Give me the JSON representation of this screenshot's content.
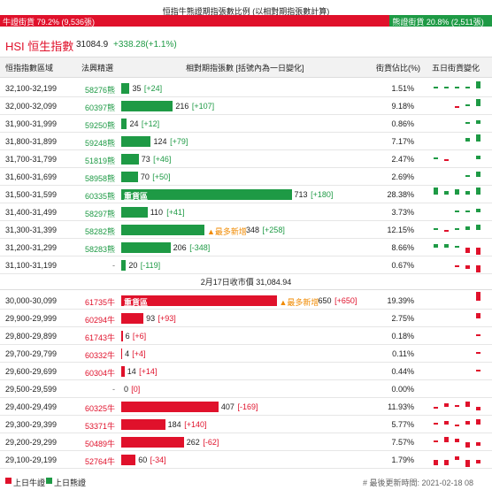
{
  "banner": {
    "title": "恒指牛熊證期指張數比例 (以相對期指張數計算)",
    "bull_label": "牛證街貨 79.2% (9,536張)",
    "bear_label": "熊證街貨 20.8% (2,511張)",
    "bull_share": 79.2
  },
  "index": {
    "name": "HSI 恒生指數",
    "price": "31084.9",
    "change": "+338.28(+1.1%)"
  },
  "columns": [
    "恒指指數區域",
    "法興精選",
    "相對期指張數 [括號內為一日變化]",
    "街貨佔比(%)",
    "五日街貨變化"
  ],
  "bear_rows": [
    {
      "range": "32,100-32,199",
      "pick": "58276熊",
      "count": 35,
      "change": "[+24]",
      "share": "1.51%",
      "five_day": [
        1,
        1,
        1,
        1,
        4
      ]
    },
    {
      "range": "32,000-32,099",
      "pick": "60397熊",
      "count": 216,
      "change": "[+107]",
      "share": "9.18%",
      "five_day": [
        0,
        0,
        -1,
        1,
        4
      ]
    },
    {
      "range": "31,900-31,999",
      "pick": "59250熊",
      "count": 24,
      "change": "[+12]",
      "share": "0.86%",
      "five_day": [
        0,
        0,
        0,
        1,
        2
      ]
    },
    {
      "range": "31,800-31,899",
      "pick": "59248熊",
      "count": 124,
      "change": "[+79]",
      "share": "7.17%",
      "five_day": [
        0,
        0,
        0,
        2,
        4
      ]
    },
    {
      "range": "31,700-31,799",
      "pick": "51819熊",
      "count": 73,
      "change": "[+46]",
      "share": "2.47%",
      "five_day": [
        1,
        -1,
        0,
        0,
        2
      ]
    },
    {
      "range": "31,600-31,699",
      "pick": "58958熊",
      "count": 70,
      "change": "[+50]",
      "share": "2.69%",
      "five_day": [
        0,
        0,
        0,
        1,
        3
      ]
    },
    {
      "range": "31,500-31,599",
      "pick": "60335熊",
      "tag": "重貨區",
      "count": 713,
      "change": "[+180]",
      "share": "28.38%",
      "five_day": [
        4,
        2,
        3,
        2,
        4
      ]
    },
    {
      "range": "31,400-31,499",
      "pick": "58297熊",
      "count": 110,
      "change": "[+41]",
      "share": "3.73%",
      "five_day": [
        0,
        0,
        1,
        1,
        2
      ]
    },
    {
      "range": "31,300-31,399",
      "pick": "58282熊",
      "note": "▲最多新增",
      "count": 348,
      "change": "[+258]",
      "share": "12.15%",
      "five_day": [
        1,
        -1,
        1,
        2,
        3
      ]
    },
    {
      "range": "31,200-31,299",
      "pick": "58283熊",
      "count": 206,
      "change": "[-348]",
      "share": "8.66%",
      "five_day": [
        2,
        2,
        1,
        -3,
        -4
      ]
    },
    {
      "range": "31,100-31,199",
      "pick": "-",
      "count": 20,
      "change": "[-119]",
      "share": "0.67%",
      "five_day": [
        0,
        0,
        -1,
        -2,
        -4
      ]
    }
  ],
  "divider": "2月17日收市價 31,084.94",
  "bull_rows": [
    {
      "range": "30,000-30,099",
      "pick": "61735牛",
      "tag": "重貨區",
      "note": "▲最多新增",
      "count": 650,
      "change": "[+650]",
      "share": "19.39%",
      "five_day": [
        0,
        0,
        0,
        0,
        5
      ]
    },
    {
      "range": "29,900-29,999",
      "pick": "60294牛",
      "count": 93,
      "change": "[+93]",
      "share": "2.75%",
      "five_day": [
        0,
        0,
        0,
        0,
        3
      ]
    },
    {
      "range": "29,800-29,899",
      "pick": "61743牛",
      "count": 6,
      "change": "[+6]",
      "share": "0.18%",
      "five_day": [
        0,
        0,
        0,
        0,
        1
      ]
    },
    {
      "range": "29,700-29,799",
      "pick": "60332牛",
      "count": 4,
      "change": "[+4]",
      "share": "0.11%",
      "five_day": [
        0,
        0,
        0,
        0,
        1
      ]
    },
    {
      "range": "29,600-29,699",
      "pick": "60304牛",
      "count": 14,
      "change": "[+14]",
      "share": "0.44%",
      "five_day": [
        0,
        0,
        0,
        0,
        1
      ]
    },
    {
      "range": "29,500-29,599",
      "pick": "-",
      "count": 0,
      "change": "[0]",
      "share": "0.00%",
      "five_day": [
        0,
        0,
        0,
        0,
        0
      ]
    },
    {
      "range": "29,400-29,499",
      "pick": "60325牛",
      "count": 407,
      "change": "[-169]",
      "share": "11.93%",
      "five_day": [
        -1,
        2,
        1,
        3,
        -2
      ]
    },
    {
      "range": "29,300-29,399",
      "pick": "53371牛",
      "count": 184,
      "change": "[+140]",
      "share": "5.77%",
      "five_day": [
        1,
        2,
        -1,
        2,
        3
      ]
    },
    {
      "range": "29,200-29,299",
      "pick": "50489牛",
      "count": 262,
      "change": "[-62]",
      "share": "7.57%",
      "five_day": [
        1,
        3,
        2,
        -3,
        -2
      ]
    },
    {
      "range": "29,100-29,199",
      "pick": "52764牛",
      "count": 60,
      "change": "[-34]",
      "share": "1.79%",
      "five_day": [
        -3,
        -3,
        2,
        -4,
        -2
      ]
    }
  ],
  "legend": [
    "上日牛證",
    "上日熊證"
  ],
  "updated": "# 最後更新時間: 2021-02-18 08"
}
